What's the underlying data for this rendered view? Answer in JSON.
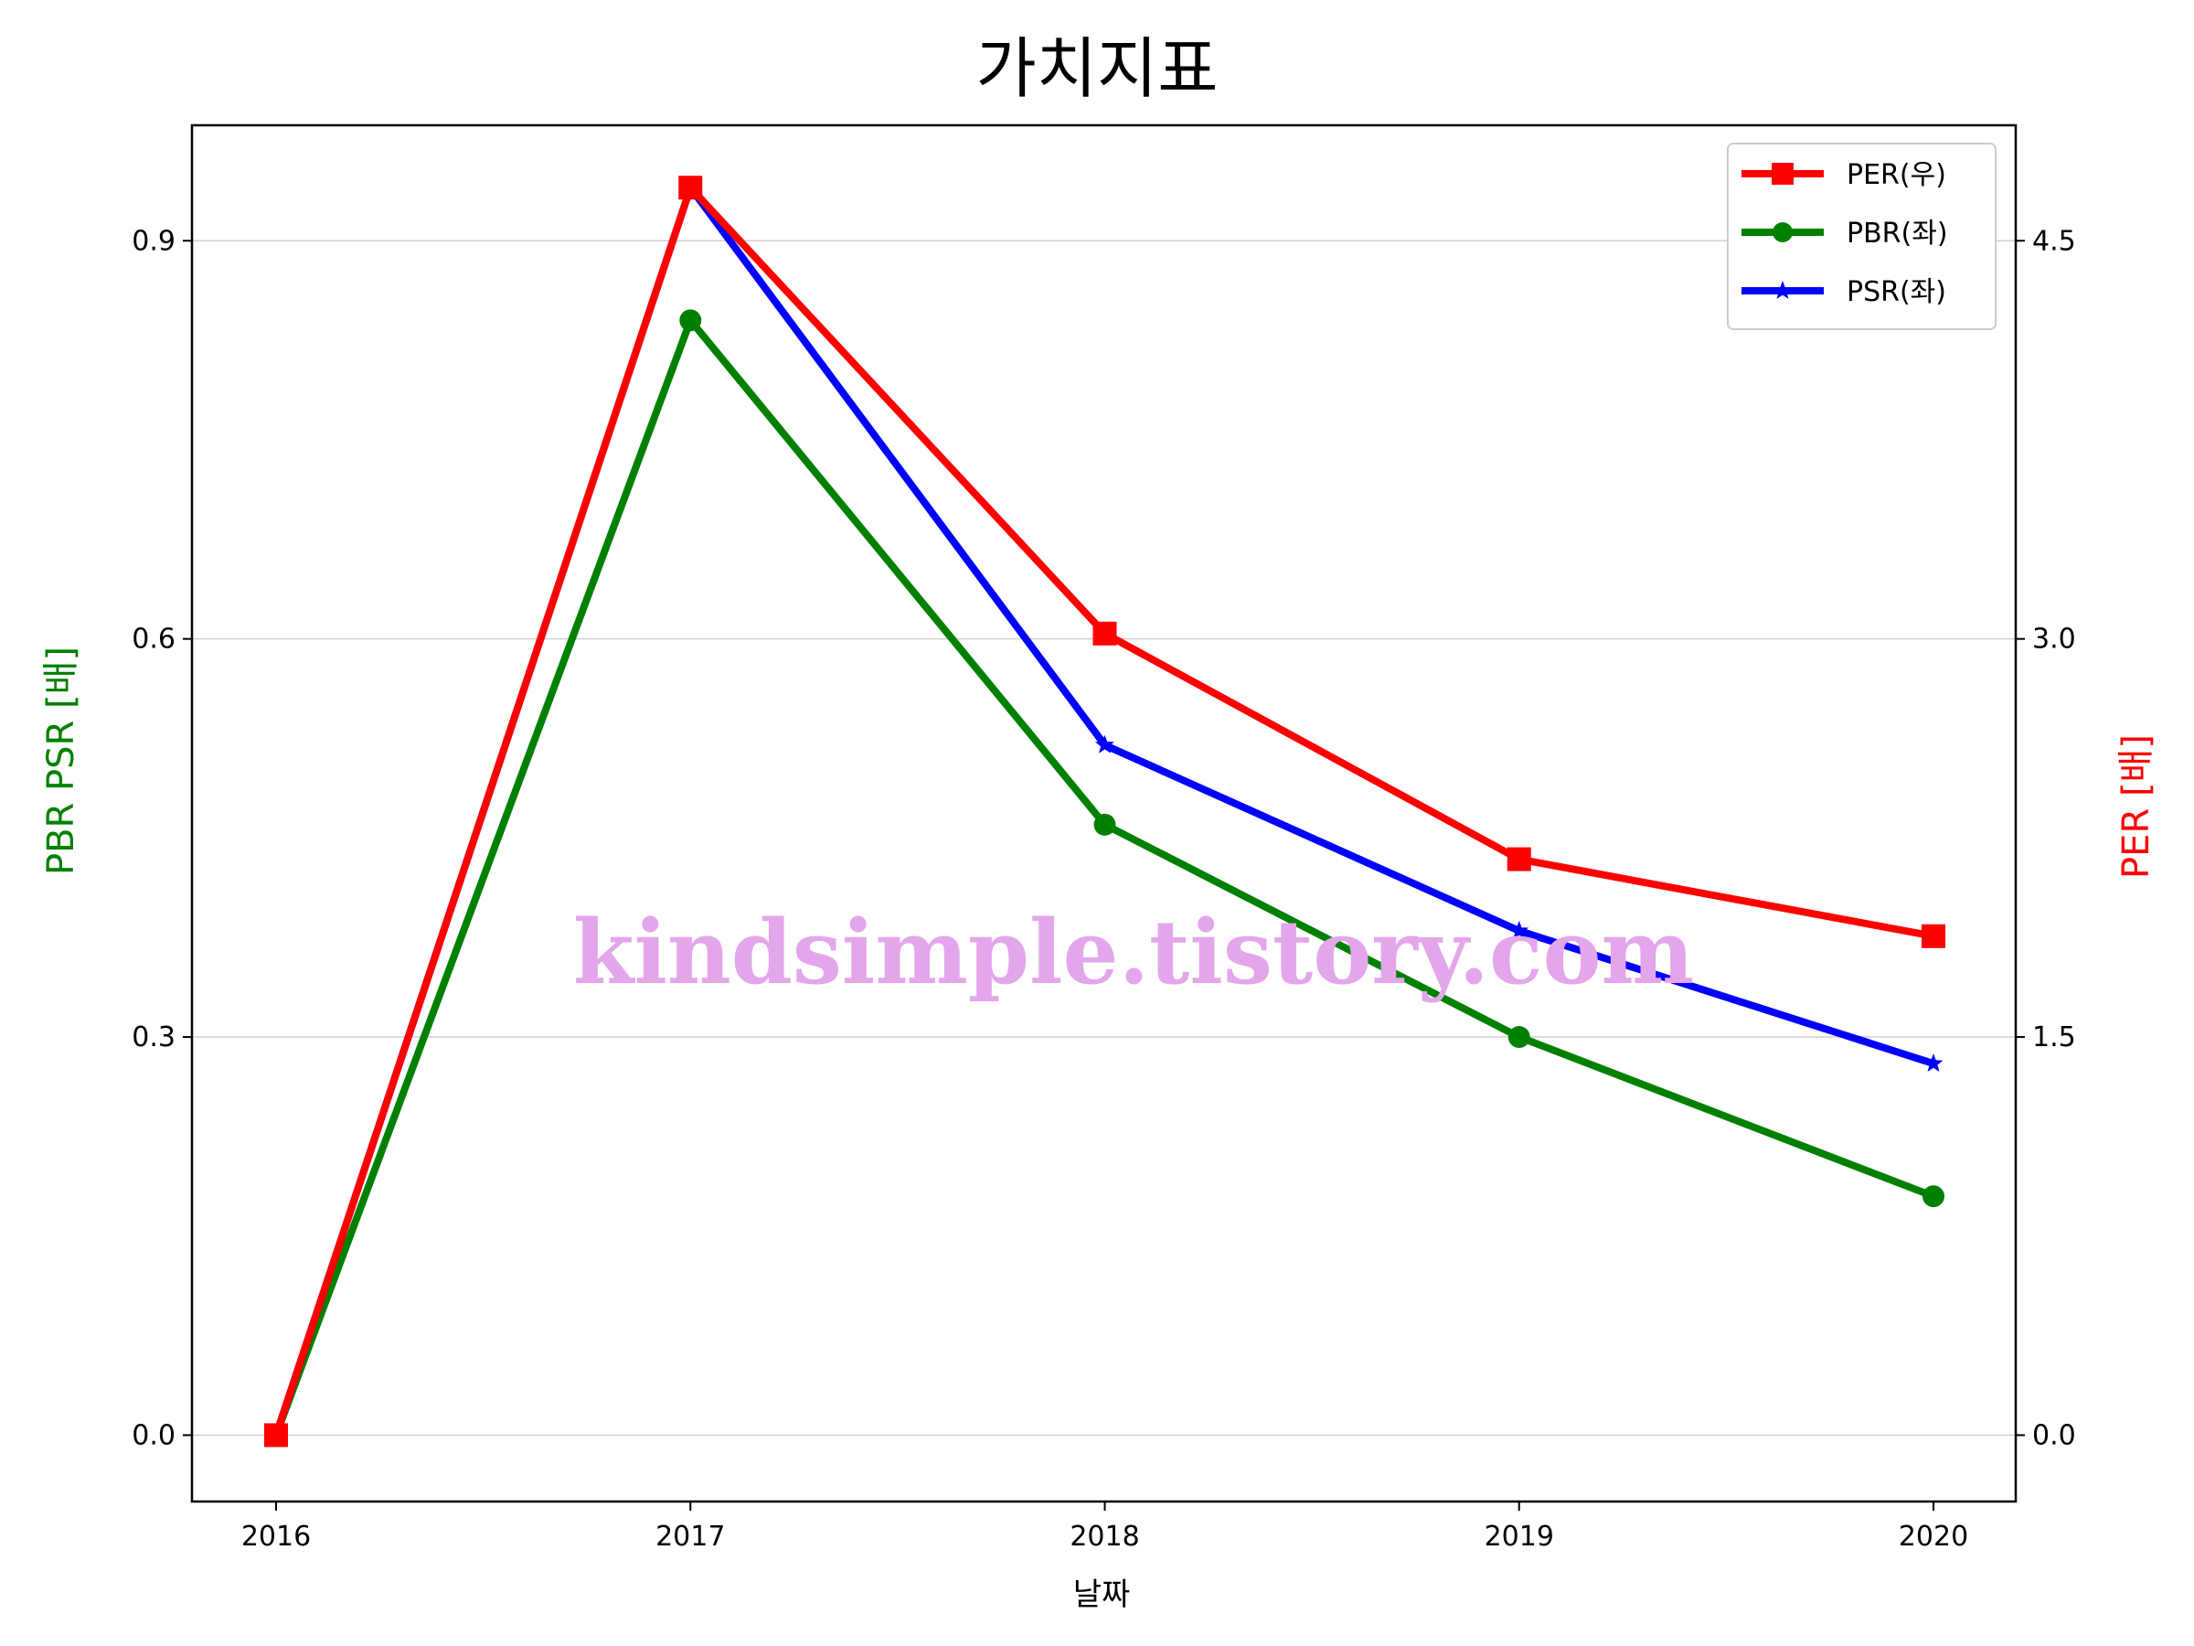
{
  "chart_data": {
    "type": "line",
    "title": "가치지표",
    "xlabel": "날짜",
    "ylabel_left": "PBR PSR [배]",
    "ylabel_right": "PER [배]",
    "categories": [
      "2016",
      "2017",
      "2018",
      "2019",
      "2020"
    ],
    "left_axis": {
      "ylim": [
        -0.05,
        0.987
      ],
      "ticks": [
        0.0,
        0.3,
        0.6,
        0.9
      ],
      "tick_labels": [
        "0.0",
        "0.3",
        "0.6",
        "0.9"
      ],
      "color": "#008000"
    },
    "right_axis": {
      "ylim": [
        -0.25,
        4.935
      ],
      "ticks": [
        0.0,
        1.5,
        3.0,
        4.5
      ],
      "tick_labels": [
        "0.0",
        "1.5",
        "3.0",
        "4.5"
      ],
      "color": "#ff0000"
    },
    "series": [
      {
        "name": "PER(우)",
        "axis": "right",
        "color": "#ff0000",
        "marker": "square",
        "values": [
          0.0,
          4.7,
          3.02,
          2.17,
          1.88
        ]
      },
      {
        "name": "PBR(좌)",
        "axis": "left",
        "color": "#008000",
        "marker": "circle",
        "values": [
          0.0,
          0.84,
          0.46,
          0.3,
          0.18
        ]
      },
      {
        "name": "PSR(좌)",
        "axis": "left",
        "color": "#0000ff",
        "marker": "star",
        "values": [
          0.0,
          0.94,
          0.52,
          0.38,
          0.28
        ]
      }
    ],
    "grid": true,
    "legend_position": "top-right",
    "watermark": {
      "text": "kindsimple.tistory.com",
      "color": "#e3a6eb"
    }
  }
}
